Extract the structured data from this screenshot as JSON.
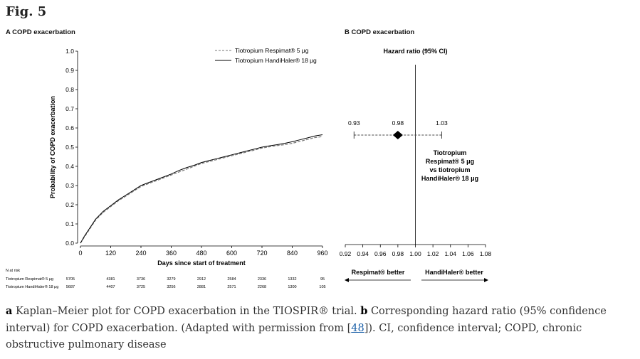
{
  "figure": {
    "label": "Fig. 5",
    "panel_a_title": "A COPD exacerbation",
    "panel_b_title": "B COPD exacerbation"
  },
  "caption": {
    "a_label": "a",
    "a_text": " Kaplan–Meier plot for COPD exacerbation in the TIOSPIR® trial. ",
    "b_label": "b",
    "b_text": " Corresponding hazard ratio (95% confidence interval) for COPD exacerbation. (Adapted with permission from [",
    "ref_link": "48",
    "tail": "]). CI, confidence interval; COPD, chronic obstructive pulmonary disease"
  },
  "chart_data": [
    {
      "type": "line",
      "title": "A COPD exacerbation",
      "xlabel": "Days since start of treatment",
      "ylabel": "Probability of COPD exacerbation",
      "xlim": [
        0,
        960
      ],
      "ylim": [
        0,
        1.0
      ],
      "xticks": [
        "0",
        "120",
        "240",
        "360",
        "480",
        "600",
        "720",
        "840",
        "960"
      ],
      "yticks": [
        "0.0",
        "0.1",
        "0.2",
        "0.3",
        "0.4",
        "0.5",
        "0.6",
        "0.7",
        "0.8",
        "0.9",
        "1.0"
      ],
      "series": [
        {
          "name": "Tiotropium Respimat® 5 μg",
          "style": "dashed",
          "x": [
            0,
            15,
            40,
            60,
            90,
            120,
            150,
            180,
            210,
            240,
            270,
            300,
            330,
            360,
            390,
            420,
            450,
            480,
            510,
            540,
            570,
            600,
            630,
            660,
            690,
            720,
            750,
            780,
            810,
            840,
            870,
            900,
            930,
            960
          ],
          "y": [
            0,
            0.03,
            0.08,
            0.12,
            0.16,
            0.19,
            0.22,
            0.245,
            0.27,
            0.295,
            0.31,
            0.325,
            0.34,
            0.355,
            0.37,
            0.385,
            0.4,
            0.415,
            0.425,
            0.435,
            0.445,
            0.455,
            0.465,
            0.475,
            0.485,
            0.495,
            0.502,
            0.508,
            0.513,
            0.52,
            0.53,
            0.54,
            0.55,
            0.555
          ]
        },
        {
          "name": "Tiotropium HandiHaler® 18 μg",
          "style": "solid",
          "x": [
            0,
            15,
            40,
            60,
            90,
            120,
            150,
            180,
            210,
            240,
            270,
            300,
            330,
            360,
            390,
            420,
            450,
            480,
            510,
            540,
            570,
            600,
            630,
            660,
            690,
            720,
            750,
            780,
            810,
            840,
            870,
            900,
            930,
            960
          ],
          "y": [
            0,
            0.035,
            0.085,
            0.125,
            0.165,
            0.195,
            0.225,
            0.25,
            0.275,
            0.3,
            0.315,
            0.33,
            0.345,
            0.36,
            0.378,
            0.393,
            0.405,
            0.42,
            0.43,
            0.44,
            0.45,
            0.46,
            0.47,
            0.48,
            0.49,
            0.5,
            0.507,
            0.513,
            0.52,
            0.528,
            0.538,
            0.548,
            0.558,
            0.565
          ]
        }
      ],
      "at_risk": {
        "title": "N at risk",
        "rows": [
          {
            "label": "Tiotropium Respimat® 5 μg",
            "values": [
              "5705",
              "4381",
              "3736",
              "3279",
              "2912",
              "2584",
              "2336",
              "1332",
              "95"
            ]
          },
          {
            "label": "Tiotropium HandiHaler® 18 μg",
            "values": [
              "5687",
              "4407",
              "3725",
              "3256",
              "2881",
              "2571",
              "2268",
              "1300",
              "105"
            ]
          }
        ]
      }
    },
    {
      "type": "forest",
      "title": "Hazard ratio (95% CI)",
      "estimate": 0.98,
      "ci": [
        0.93,
        1.03
      ],
      "point_label": "0.98",
      "lower_label": "0.93",
      "upper_label": "1.03",
      "reference_line": 1.0,
      "xlim": [
        0.92,
        1.08
      ],
      "xticks": [
        "0.92",
        "0.94",
        "0.96",
        "0.98",
        "1.00",
        "1.02",
        "1.04",
        "1.06",
        "1.08"
      ],
      "comparison_label": [
        "Tiotropium",
        "Respimat® 5 μg",
        "vs tiotropium",
        "HandiHaler® 18 μg"
      ],
      "left_label": "Respimat® better",
      "right_label": "HandiHaler® better"
    }
  ]
}
